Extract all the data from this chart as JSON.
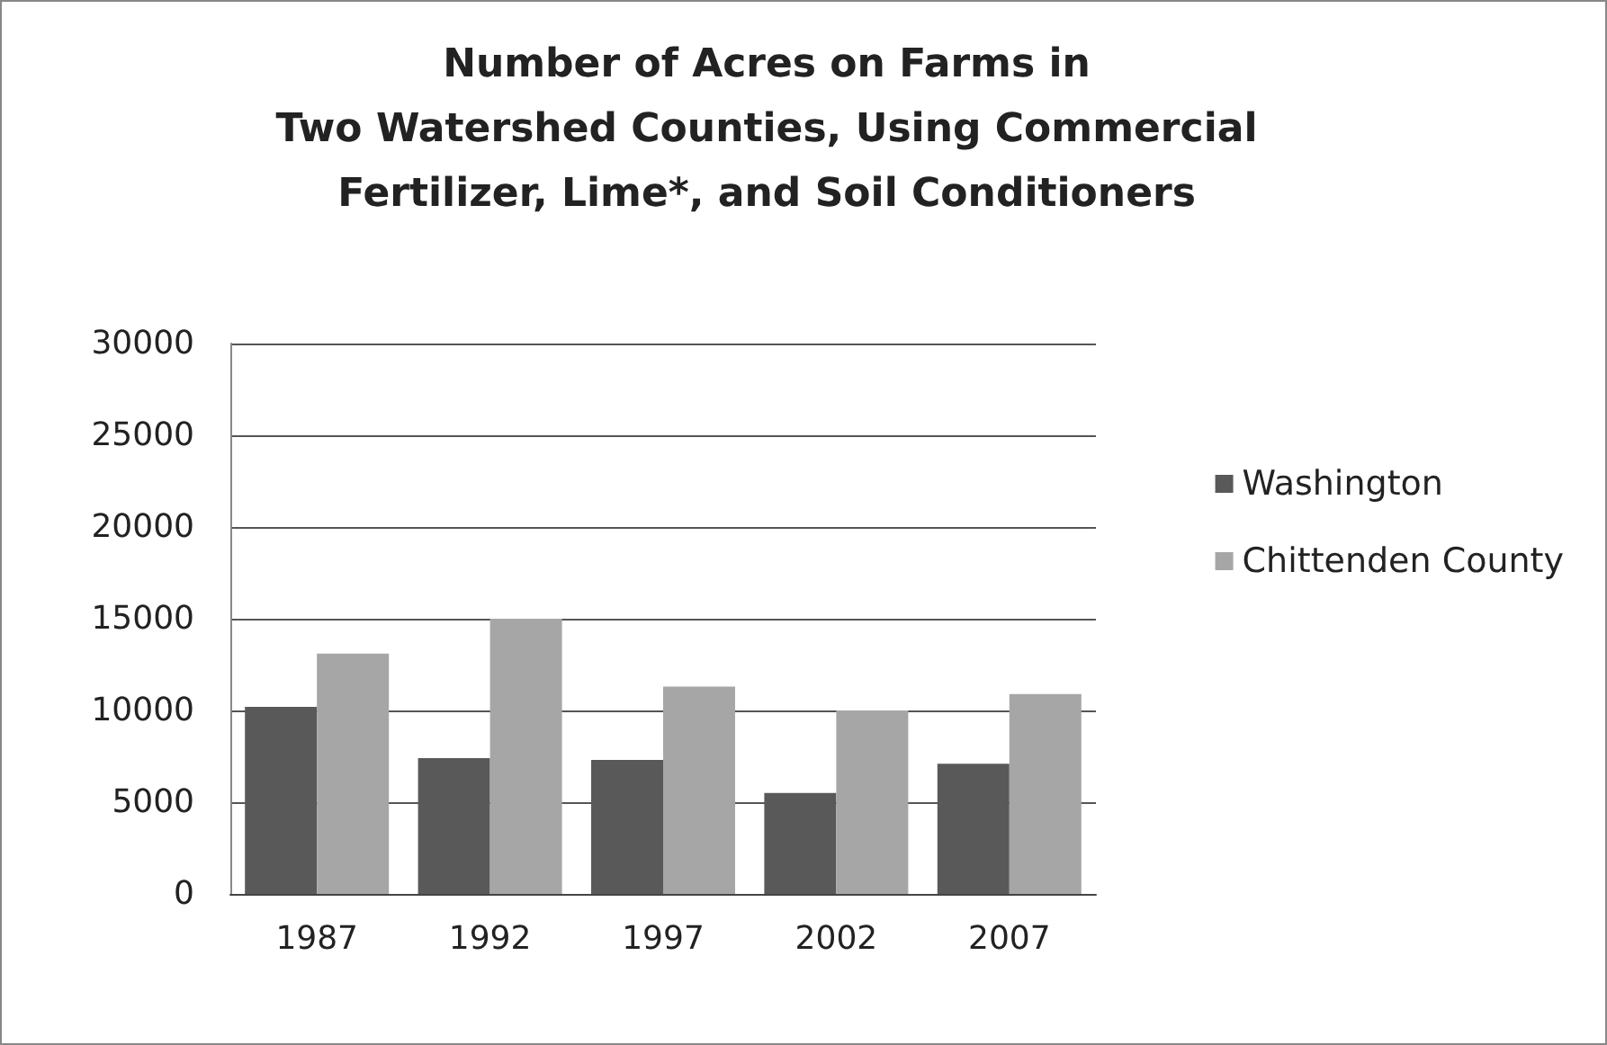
{
  "chart_data": {
    "type": "bar",
    "title": "Number of Acres on Farms in\nTwo Watershed Counties, Using Commercial\nFertilizer, Lime*, and Soil Conditioners",
    "categories": [
      "1987",
      "1992",
      "1997",
      "2002",
      "2007"
    ],
    "series": [
      {
        "name": "Washington",
        "color": "#595959",
        "values": [
          10200,
          7400,
          7300,
          5500,
          7100
        ]
      },
      {
        "name": "Chittenden County",
        "color": "#a6a6a6",
        "values": [
          13100,
          15000,
          11300,
          10000,
          10900
        ]
      }
    ],
    "ylim": [
      0,
      30000
    ],
    "yticks": [
      0,
      5000,
      10000,
      15000,
      20000,
      25000,
      30000
    ],
    "grid": "y",
    "legend": "right"
  }
}
